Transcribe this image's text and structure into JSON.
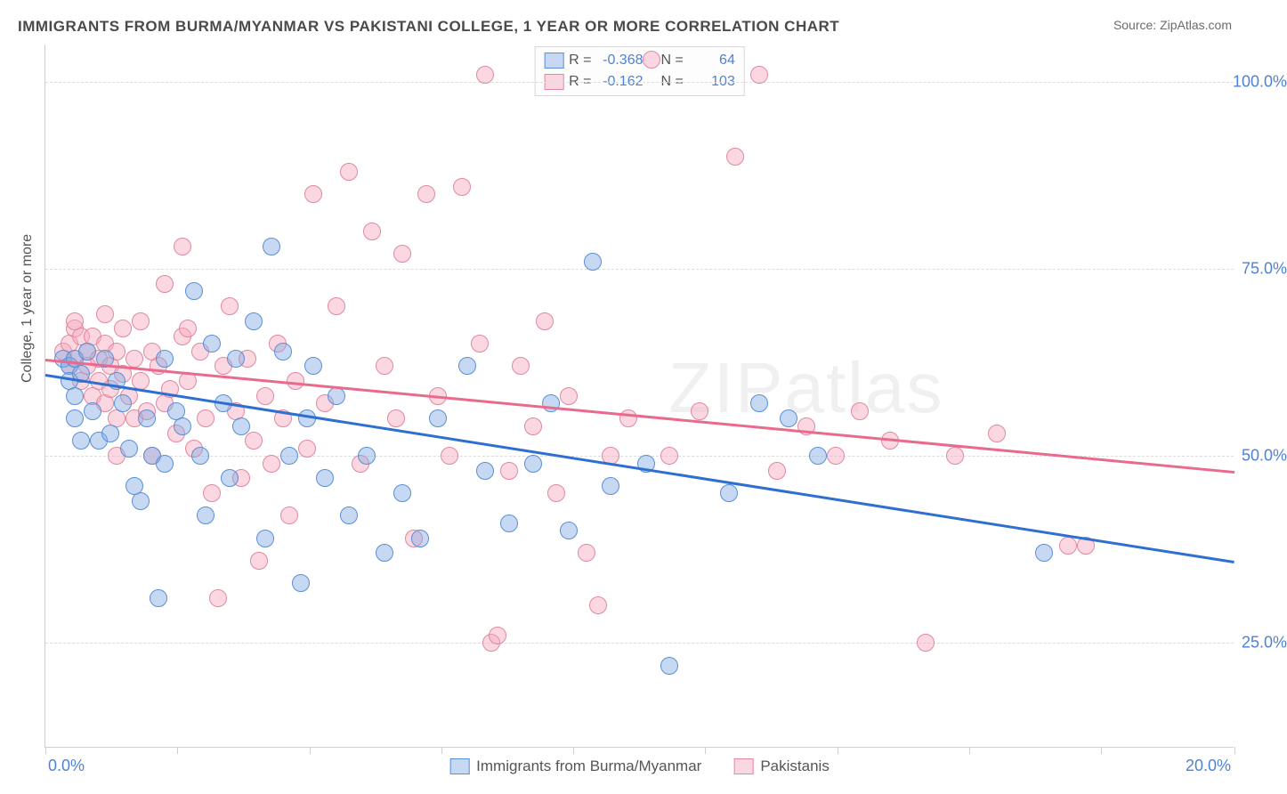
{
  "title": "IMMIGRANTS FROM BURMA/MYANMAR VS PAKISTANI COLLEGE, 1 YEAR OR MORE CORRELATION CHART",
  "source": "Source: ZipAtlas.com",
  "watermark": "ZIPatlas",
  "y_axis_title": "College, 1 year or more",
  "chart": {
    "type": "scatter",
    "background_color": "#ffffff",
    "grid_color": "#dcdcdc",
    "axis_color": "#cfcfcf",
    "x_range": [
      0,
      20
    ],
    "y_range": [
      11,
      105
    ],
    "x_tick_labels": {
      "left": "0.0%",
      "right": "20.0%"
    },
    "x_tick_positions": [
      0,
      2.22,
      4.44,
      6.66,
      8.88,
      11.1,
      13.32,
      15.54,
      17.76,
      20
    ],
    "y_ticks": [
      25,
      50,
      75,
      100
    ],
    "y_tick_labels": [
      "25.0%",
      "50.0%",
      "75.0%",
      "100.0%"
    ],
    "y_tick_label_color": "#4d82d6",
    "marker_radius": 10,
    "marker_border_width": 1,
    "line_width": 2.5,
    "series": [
      {
        "name": "Immigrants from Burma/Myanmar",
        "fill": "rgba(131,171,227,0.45)",
        "stroke": "#5a8fd6",
        "line_color": "#2f6fd0",
        "trend": {
          "y_at_xmin": 61,
          "y_at_xmax": 36
        },
        "stats": {
          "R": "-0.368",
          "N": "64"
        },
        "points": [
          [
            0.3,
            63
          ],
          [
            0.4,
            62
          ],
          [
            0.4,
            60
          ],
          [
            0.5,
            55
          ],
          [
            0.5,
            63
          ],
          [
            0.5,
            58
          ],
          [
            0.6,
            61
          ],
          [
            0.7,
            64
          ],
          [
            0.8,
            56
          ],
          [
            0.9,
            52
          ],
          [
            1.0,
            63
          ],
          [
            1.1,
            53
          ],
          [
            1.2,
            60
          ],
          [
            1.3,
            57
          ],
          [
            1.4,
            51
          ],
          [
            1.6,
            44
          ],
          [
            1.7,
            55
          ],
          [
            1.8,
            50
          ],
          [
            1.9,
            31
          ],
          [
            2.0,
            49
          ],
          [
            2.0,
            63
          ],
          [
            2.2,
            56
          ],
          [
            2.3,
            54
          ],
          [
            2.5,
            72
          ],
          [
            2.6,
            50
          ],
          [
            2.7,
            42
          ],
          [
            2.8,
            65
          ],
          [
            3.0,
            57
          ],
          [
            3.1,
            47
          ],
          [
            3.2,
            63
          ],
          [
            3.3,
            54
          ],
          [
            3.5,
            68
          ],
          [
            3.7,
            39
          ],
          [
            3.8,
            78
          ],
          [
            4.0,
            64
          ],
          [
            4.1,
            50
          ],
          [
            4.3,
            33
          ],
          [
            4.4,
            55
          ],
          [
            4.5,
            62
          ],
          [
            4.7,
            47
          ],
          [
            4.9,
            58
          ],
          [
            5.1,
            42
          ],
          [
            5.4,
            50
          ],
          [
            5.7,
            37
          ],
          [
            6.0,
            45
          ],
          [
            6.3,
            39
          ],
          [
            6.6,
            55
          ],
          [
            7.1,
            62
          ],
          [
            7.4,
            48
          ],
          [
            7.8,
            41
          ],
          [
            8.2,
            49
          ],
          [
            8.5,
            57
          ],
          [
            8.8,
            40
          ],
          [
            9.2,
            76
          ],
          [
            9.5,
            46
          ],
          [
            10.1,
            49
          ],
          [
            10.5,
            22
          ],
          [
            11.5,
            45
          ],
          [
            12.0,
            57
          ],
          [
            12.5,
            55
          ],
          [
            13.0,
            50
          ],
          [
            16.8,
            37
          ],
          [
            0.6,
            52
          ],
          [
            1.5,
            46
          ]
        ]
      },
      {
        "name": "Pakistanis",
        "fill": "rgba(246,169,188,0.45)",
        "stroke": "#e0889f",
        "line_color": "#e96a8c",
        "trend": {
          "y_at_xmin": 63,
          "y_at_xmax": 48
        },
        "stats": {
          "R": "-0.162",
          "N": "103"
        },
        "points": [
          [
            0.3,
            64
          ],
          [
            0.4,
            65
          ],
          [
            0.4,
            62
          ],
          [
            0.5,
            67
          ],
          [
            0.5,
            63
          ],
          [
            0.6,
            60
          ],
          [
            0.6,
            66
          ],
          [
            0.7,
            64
          ],
          [
            0.7,
            62
          ],
          [
            0.8,
            58
          ],
          [
            0.8,
            66
          ],
          [
            0.9,
            63
          ],
          [
            0.9,
            60
          ],
          [
            1.0,
            65
          ],
          [
            1.0,
            57
          ],
          [
            1.1,
            62
          ],
          [
            1.1,
            59
          ],
          [
            1.2,
            64
          ],
          [
            1.2,
            55
          ],
          [
            1.3,
            67
          ],
          [
            1.3,
            61
          ],
          [
            1.4,
            58
          ],
          [
            1.5,
            63
          ],
          [
            1.5,
            55
          ],
          [
            1.6,
            68
          ],
          [
            1.6,
            60
          ],
          [
            1.7,
            56
          ],
          [
            1.8,
            64
          ],
          [
            1.8,
            50
          ],
          [
            1.9,
            62
          ],
          [
            2.0,
            57
          ],
          [
            2.0,
            73
          ],
          [
            2.1,
            59
          ],
          [
            2.2,
            53
          ],
          [
            2.3,
            66
          ],
          [
            2.3,
            78
          ],
          [
            2.4,
            60
          ],
          [
            2.5,
            51
          ],
          [
            2.6,
            64
          ],
          [
            2.7,
            55
          ],
          [
            2.8,
            45
          ],
          [
            2.9,
            31
          ],
          [
            3.0,
            62
          ],
          [
            3.1,
            70
          ],
          [
            3.2,
            56
          ],
          [
            3.3,
            47
          ],
          [
            3.4,
            63
          ],
          [
            3.5,
            52
          ],
          [
            3.6,
            36
          ],
          [
            3.7,
            58
          ],
          [
            3.8,
            49
          ],
          [
            3.9,
            65
          ],
          [
            4.0,
            55
          ],
          [
            4.1,
            42
          ],
          [
            4.2,
            60
          ],
          [
            4.4,
            51
          ],
          [
            4.5,
            85
          ],
          [
            4.7,
            57
          ],
          [
            4.9,
            70
          ],
          [
            5.1,
            88
          ],
          [
            5.3,
            49
          ],
          [
            5.5,
            80
          ],
          [
            5.7,
            62
          ],
          [
            5.9,
            55
          ],
          [
            6.0,
            77
          ],
          [
            6.2,
            39
          ],
          [
            6.4,
            85
          ],
          [
            6.6,
            58
          ],
          [
            6.8,
            50
          ],
          [
            7.0,
            86
          ],
          [
            7.3,
            65
          ],
          [
            7.4,
            101
          ],
          [
            7.5,
            25
          ],
          [
            7.6,
            26
          ],
          [
            7.8,
            48
          ],
          [
            8.0,
            62
          ],
          [
            8.2,
            54
          ],
          [
            8.4,
            68
          ],
          [
            8.6,
            45
          ],
          [
            8.8,
            58
          ],
          [
            9.1,
            37
          ],
          [
            9.3,
            30
          ],
          [
            9.5,
            50
          ],
          [
            9.8,
            55
          ],
          [
            10.2,
            103
          ],
          [
            10.5,
            50
          ],
          [
            11.0,
            56
          ],
          [
            11.6,
            90
          ],
          [
            12.0,
            101
          ],
          [
            12.3,
            48
          ],
          [
            12.8,
            54
          ],
          [
            13.3,
            50
          ],
          [
            13.7,
            56
          ],
          [
            14.2,
            52
          ],
          [
            14.8,
            25
          ],
          [
            15.3,
            50
          ],
          [
            16.0,
            53
          ],
          [
            17.2,
            38
          ],
          [
            17.5,
            38
          ],
          [
            2.4,
            67
          ],
          [
            1.0,
            69
          ],
          [
            0.5,
            68
          ],
          [
            1.2,
            50
          ]
        ]
      }
    ]
  },
  "legend_box": {
    "R_label": "R =",
    "N_label": "N ="
  }
}
